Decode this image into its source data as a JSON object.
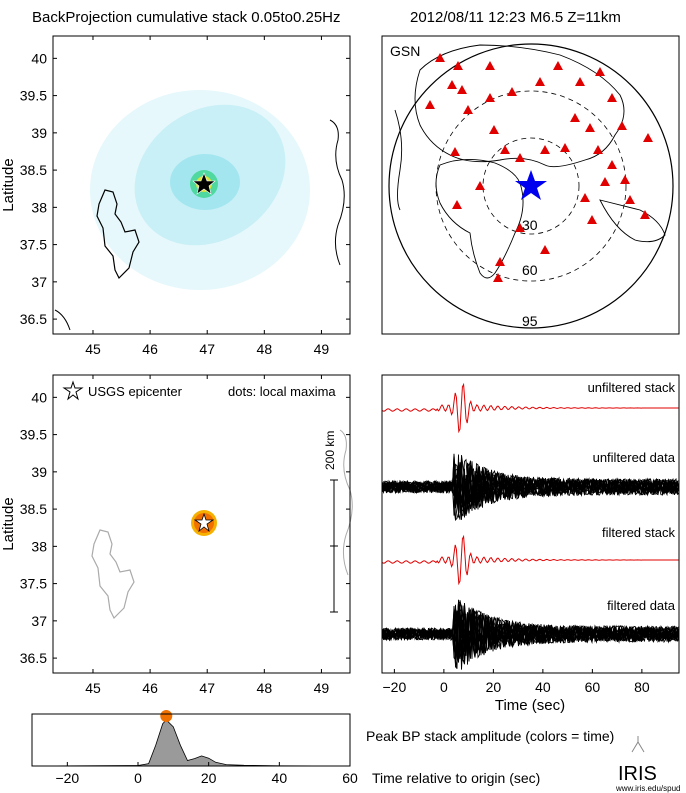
{
  "header": {
    "title": "BackProjection cumulative stack 0.05to0.25Hz",
    "event": "2012/08/11 12:23  M6.5  Z=11km"
  },
  "panels": {
    "map_top": {
      "ylabel": "Latitude",
      "xticks": [
        "45",
        "46",
        "47",
        "48",
        "49"
      ],
      "yticks": [
        "40",
        "39.5",
        "39",
        "38.5",
        "38",
        "37.5",
        "37",
        "36.5"
      ]
    },
    "globe": {
      "network": "GSN",
      "distance_labels": [
        "30",
        "60",
        "95"
      ]
    },
    "map_bottom": {
      "ylabel": "Latitude",
      "legend_epicenter": "USGS epicenter",
      "legend_dots": "dots: local maxima",
      "scale_label": "200 km",
      "xticks": [
        "45",
        "46",
        "47",
        "48",
        "49"
      ],
      "yticks": [
        "40",
        "39.5",
        "39",
        "38.5",
        "38",
        "37.5",
        "37",
        "36.5"
      ]
    },
    "traces": {
      "labels": [
        "unfiltered stack",
        "unfiltered data",
        "filtered stack",
        "filtered data"
      ],
      "xticks": [
        "−20",
        "0",
        "20",
        "40",
        "60",
        "80"
      ],
      "xlabel": "Time (sec)"
    },
    "amplitude": {
      "title": "Peak BP stack amplitude (colors = time)",
      "xlabel": "Time relative to origin (sec)",
      "xticks": [
        "−20",
        "0",
        "20",
        "40",
        "60"
      ]
    }
  },
  "logo": {
    "name": "IRIS",
    "url": "www.iris.edu/spud"
  },
  "colors": {
    "stack": "#e00000",
    "station": "#e00000",
    "epicenter_star": "#0000ee",
    "maxima": "#f07000"
  },
  "chart_data": [
    {
      "type": "heatmap",
      "xlim": [
        44.3,
        49.5
      ],
      "ylim": [
        36.3,
        40.3
      ],
      "xticks": [
        45,
        46,
        47,
        48,
        49
      ],
      "yticks": [
        36.5,
        37,
        37.5,
        38,
        38.5,
        39,
        39.5,
        40
      ],
      "epicenter": {
        "lon": 46.83,
        "lat": 38.33
      },
      "peak": {
        "lon": 46.83,
        "lat": 38.33
      }
    },
    {
      "type": "scatter",
      "epicenter": {
        "lon": 46.83,
        "lat": 38.33
      },
      "maxima": [
        {
          "lon": 46.83,
          "lat": 38.33
        }
      ]
    },
    {
      "type": "line",
      "xlim": [
        -25,
        95
      ],
      "xticks": [
        -20,
        0,
        20,
        40,
        60,
        80
      ],
      "peak_time": 7
    },
    {
      "type": "area",
      "xlim": [
        -30,
        60
      ],
      "xticks": [
        -20,
        0,
        20,
        40,
        60
      ],
      "x": [
        -30,
        0,
        3,
        5,
        7,
        8,
        10,
        12,
        14,
        16,
        18,
        20,
        22,
        25,
        30,
        40,
        50,
        60
      ],
      "values": [
        0,
        0.01,
        0.05,
        0.45,
        0.92,
        1.0,
        0.85,
        0.45,
        0.12,
        0.16,
        0.22,
        0.17,
        0.08,
        0.03,
        0.015,
        0.005,
        0.003,
        0.002
      ],
      "peak_time": 8
    }
  ]
}
